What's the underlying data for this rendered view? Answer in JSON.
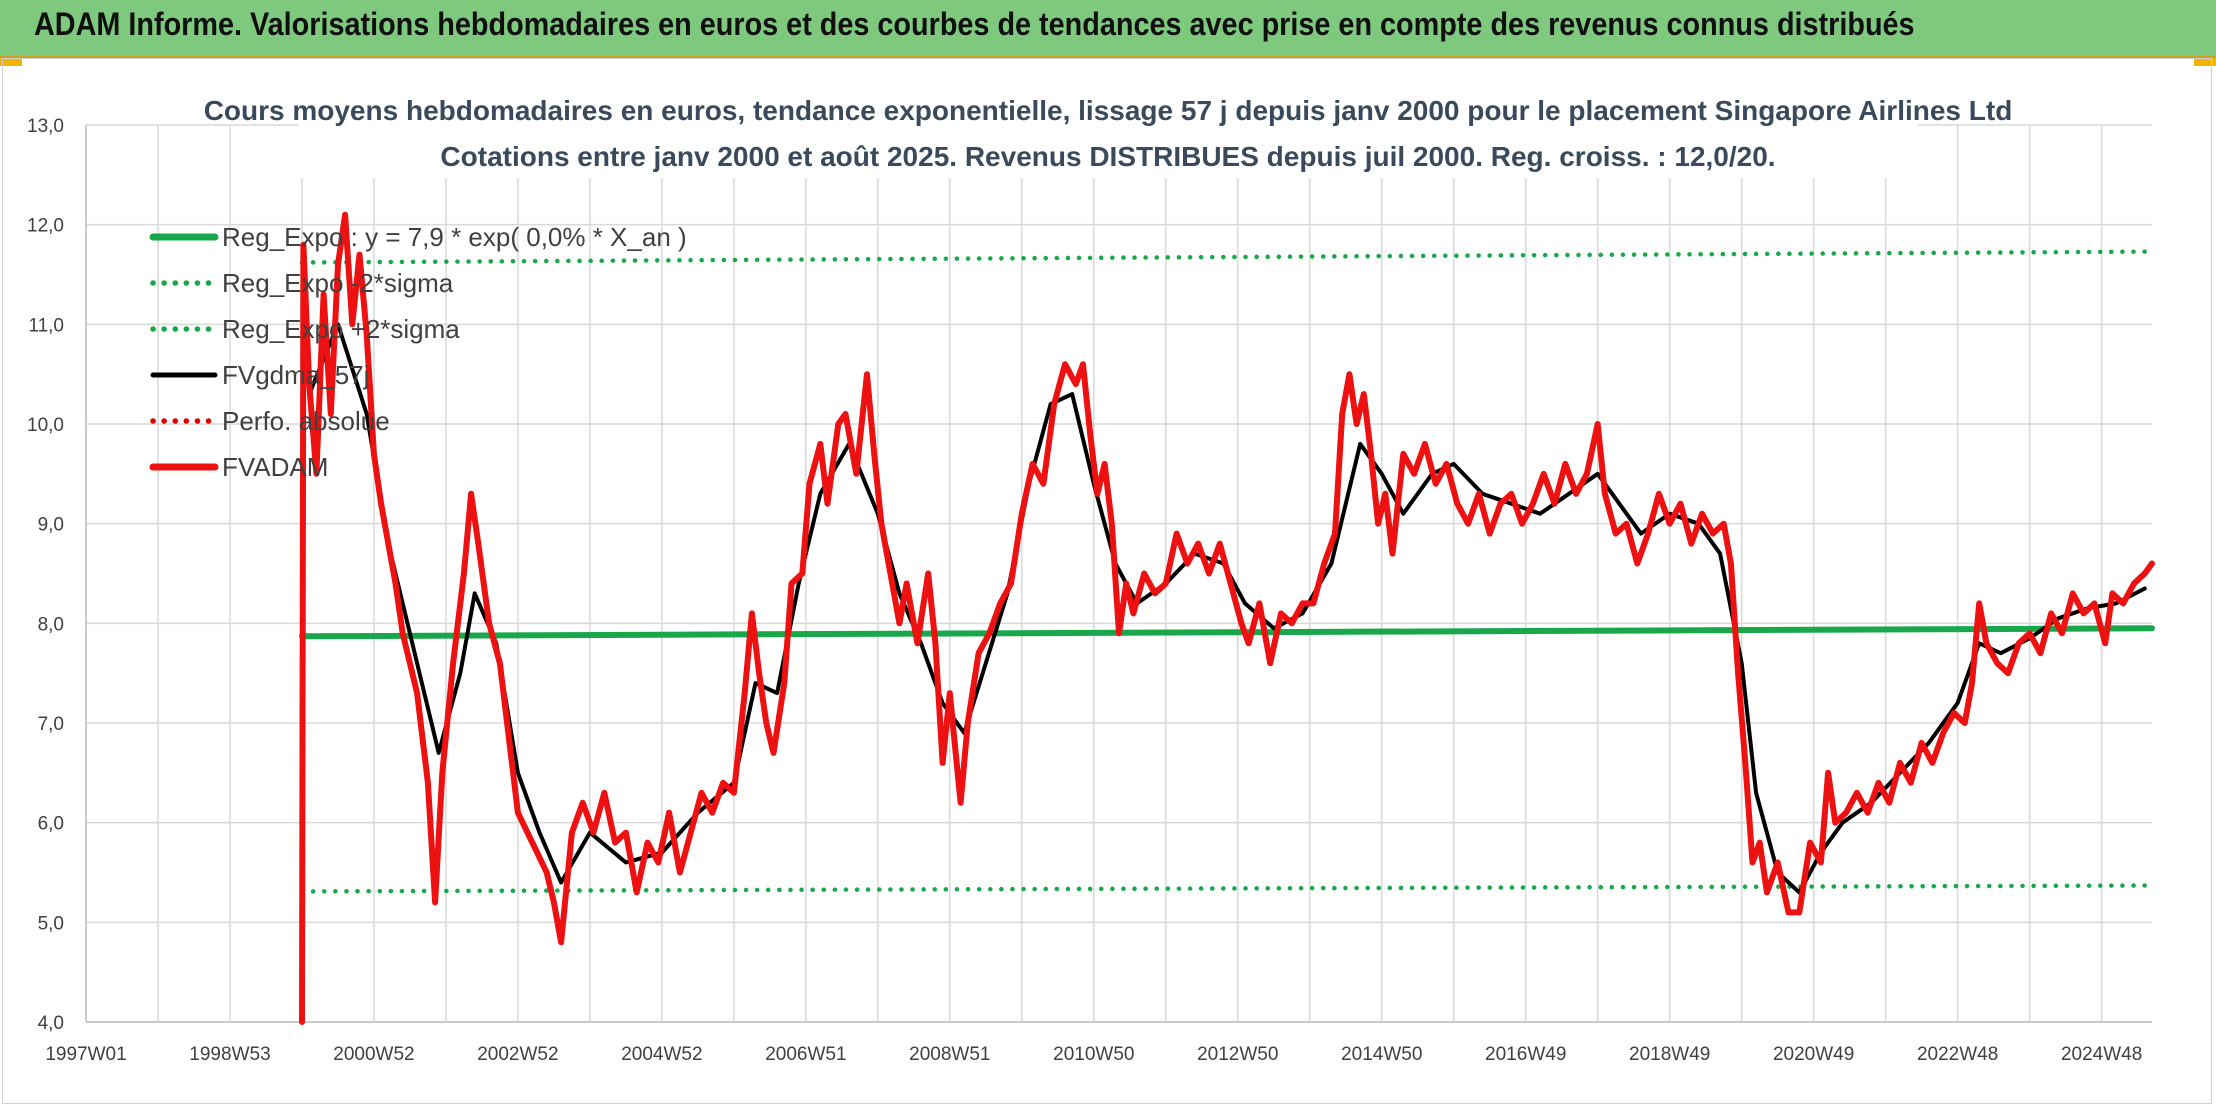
{
  "banner": {
    "title": "ADAM Informe. Valorisations hebdomadaires en euros et des courbes de tendances avec prise en compte des revenus connus distribués"
  },
  "colors": {
    "banner_bg": "#7fc97f",
    "reg": "#18a84b",
    "smooth": "#000000",
    "price": "#ee1111",
    "perfo": "#e00000",
    "grid": "#d9d9d9"
  },
  "chart_data": {
    "type": "line",
    "title": "Cours moyens hebdomadaires en euros, tendance exponentielle, lissage 57 j depuis janv 2000 pour le placement Singapore Airlines Ltd",
    "subtitle": "Cotations entre janv 2000 et août 2025. Revenus DISTRIBUES depuis juil 2000. Reg. croiss. : 12,0/20.",
    "xlabel": "",
    "ylabel": "",
    "ylim": [
      4.0,
      13.0
    ],
    "xlim": [
      1997.0,
      2025.7
    ],
    "x_ticks": [
      {
        "label": "1997W01",
        "x": 1997.0
      },
      {
        "label": "1998W53",
        "x": 1999.0
      },
      {
        "label": "2000W52",
        "x": 2001.0
      },
      {
        "label": "2002W52",
        "x": 2003.0
      },
      {
        "label": "2004W52",
        "x": 2005.0
      },
      {
        "label": "2006W51",
        "x": 2007.0
      },
      {
        "label": "2008W51",
        "x": 2009.0
      },
      {
        "label": "2010W50",
        "x": 2011.0
      },
      {
        "label": "2012W50",
        "x": 2013.0
      },
      {
        "label": "2014W50",
        "x": 2015.0
      },
      {
        "label": "2016W49",
        "x": 2017.0
      },
      {
        "label": "2018W49",
        "x": 2019.0
      },
      {
        "label": "2020W49",
        "x": 2021.0
      },
      {
        "label": "2022W48",
        "x": 2023.0
      },
      {
        "label": "2024W48",
        "x": 2025.0
      }
    ],
    "y_ticks": [
      "4,0",
      "5,0",
      "6,0",
      "7,0",
      "8,0",
      "9,0",
      "10,0",
      "11,0",
      "12,0",
      "13,0"
    ],
    "y_tick_values": [
      4,
      5,
      6,
      7,
      8,
      9,
      10,
      11,
      12,
      13
    ],
    "grid": true,
    "legend_position": "top-left",
    "series": [
      {
        "name": "Reg_Expo : y = 7,9 * exp( 0,0% *  X_an )",
        "style": "solid-thick",
        "color": "#18a84b",
        "points": [
          [
            2000.0,
            7.87
          ],
          [
            2025.7,
            7.95
          ]
        ]
      },
      {
        "name": "Reg_Expo -2*sigma",
        "style": "dotted",
        "color": "#18a84b",
        "points": [
          [
            2000.0,
            5.31
          ],
          [
            2025.7,
            5.37
          ]
        ]
      },
      {
        "name": "Reg_Expo +2*sigma",
        "style": "dotted",
        "color": "#18a84b",
        "points": [
          [
            2000.0,
            11.62
          ],
          [
            2025.7,
            11.73
          ]
        ]
      },
      {
        "name": "FVgdma_57j",
        "style": "solid",
        "color": "#000000",
        "points": [
          [
            2000.1,
            10.3
          ],
          [
            2000.5,
            11.0
          ],
          [
            2000.9,
            10.1
          ],
          [
            2001.2,
            8.8
          ],
          [
            2001.6,
            7.6
          ],
          [
            2001.9,
            6.7
          ],
          [
            2002.2,
            7.5
          ],
          [
            2002.4,
            8.3
          ],
          [
            2002.7,
            7.8
          ],
          [
            2003.0,
            6.5
          ],
          [
            2003.3,
            5.9
          ],
          [
            2003.6,
            5.4
          ],
          [
            2004.0,
            5.9
          ],
          [
            2004.5,
            5.6
          ],
          [
            2005.0,
            5.7
          ],
          [
            2005.5,
            6.1
          ],
          [
            2006.0,
            6.4
          ],
          [
            2006.3,
            7.4
          ],
          [
            2006.6,
            7.3
          ],
          [
            2006.9,
            8.4
          ],
          [
            2007.2,
            9.3
          ],
          [
            2007.6,
            9.8
          ],
          [
            2008.0,
            9.1
          ],
          [
            2008.3,
            8.3
          ],
          [
            2008.6,
            7.8
          ],
          [
            2008.9,
            7.2
          ],
          [
            2009.2,
            6.9
          ],
          [
            2009.5,
            7.6
          ],
          [
            2009.8,
            8.3
          ],
          [
            2010.1,
            9.4
          ],
          [
            2010.4,
            10.2
          ],
          [
            2010.7,
            10.3
          ],
          [
            2011.0,
            9.4
          ],
          [
            2011.3,
            8.6
          ],
          [
            2011.6,
            8.2
          ],
          [
            2012.0,
            8.4
          ],
          [
            2012.4,
            8.7
          ],
          [
            2012.8,
            8.6
          ],
          [
            2013.1,
            8.2
          ],
          [
            2013.5,
            7.95
          ],
          [
            2013.9,
            8.1
          ],
          [
            2014.3,
            8.6
          ],
          [
            2014.7,
            9.8
          ],
          [
            2015.0,
            9.5
          ],
          [
            2015.3,
            9.1
          ],
          [
            2015.7,
            9.5
          ],
          [
            2016.0,
            9.6
          ],
          [
            2016.4,
            9.3
          ],
          [
            2016.8,
            9.2
          ],
          [
            2017.2,
            9.1
          ],
          [
            2017.6,
            9.3
          ],
          [
            2018.0,
            9.5
          ],
          [
            2018.3,
            9.2
          ],
          [
            2018.6,
            8.9
          ],
          [
            2019.0,
            9.1
          ],
          [
            2019.4,
            9.0
          ],
          [
            2019.7,
            8.7
          ],
          [
            2020.0,
            7.6
          ],
          [
            2020.2,
            6.3
          ],
          [
            2020.5,
            5.5
          ],
          [
            2020.8,
            5.3
          ],
          [
            2021.1,
            5.7
          ],
          [
            2021.4,
            6.0
          ],
          [
            2021.8,
            6.2
          ],
          [
            2022.2,
            6.5
          ],
          [
            2022.6,
            6.8
          ],
          [
            2023.0,
            7.2
          ],
          [
            2023.3,
            7.8
          ],
          [
            2023.6,
            7.7
          ],
          [
            2024.0,
            7.85
          ],
          [
            2024.4,
            8.05
          ],
          [
            2024.8,
            8.15
          ],
          [
            2025.2,
            8.2
          ],
          [
            2025.6,
            8.35
          ]
        ]
      },
      {
        "name": "Perfo. absolue",
        "style": "dotted",
        "color": "#e00000",
        "points": []
      },
      {
        "name": "FVADAM",
        "style": "solid-thick",
        "color": "#ee1111",
        "points": [
          [
            2000.0,
            4.0
          ],
          [
            2000.02,
            11.8
          ],
          [
            2000.1,
            10.4
          ],
          [
            2000.2,
            9.5
          ],
          [
            2000.3,
            11.3
          ],
          [
            2000.4,
            10.1
          ],
          [
            2000.5,
            11.6
          ],
          [
            2000.6,
            12.1
          ],
          [
            2000.7,
            11.0
          ],
          [
            2000.8,
            11.7
          ],
          [
            2000.9,
            10.9
          ],
          [
            2001.0,
            9.7
          ],
          [
            2001.1,
            9.2
          ],
          [
            2001.2,
            8.8
          ],
          [
            2001.3,
            8.4
          ],
          [
            2001.4,
            7.9
          ],
          [
            2001.5,
            7.6
          ],
          [
            2001.6,
            7.3
          ],
          [
            2001.75,
            6.4
          ],
          [
            2001.85,
            5.2
          ],
          [
            2001.95,
            6.5
          ],
          [
            2002.1,
            7.6
          ],
          [
            2002.25,
            8.5
          ],
          [
            2002.35,
            9.3
          ],
          [
            2002.45,
            8.8
          ],
          [
            2002.6,
            8.0
          ],
          [
            2002.75,
            7.6
          ],
          [
            2002.9,
            6.7
          ],
          [
            2003.0,
            6.1
          ],
          [
            2003.2,
            5.8
          ],
          [
            2003.4,
            5.5
          ],
          [
            2003.5,
            5.2
          ],
          [
            2003.6,
            4.8
          ],
          [
            2003.75,
            5.9
          ],
          [
            2003.9,
            6.2
          ],
          [
            2004.05,
            5.9
          ],
          [
            2004.2,
            6.3
          ],
          [
            2004.35,
            5.8
          ],
          [
            2004.5,
            5.9
          ],
          [
            2004.65,
            5.3
          ],
          [
            2004.8,
            5.8
          ],
          [
            2004.95,
            5.6
          ],
          [
            2005.1,
            6.1
          ],
          [
            2005.25,
            5.5
          ],
          [
            2005.4,
            5.9
          ],
          [
            2005.55,
            6.3
          ],
          [
            2005.7,
            6.1
          ],
          [
            2005.85,
            6.4
          ],
          [
            2006.0,
            6.3
          ],
          [
            2006.15,
            7.3
          ],
          [
            2006.25,
            8.1
          ],
          [
            2006.35,
            7.5
          ],
          [
            2006.45,
            7.0
          ],
          [
            2006.55,
            6.7
          ],
          [
            2006.7,
            7.4
          ],
          [
            2006.8,
            8.4
          ],
          [
            2006.95,
            8.5
          ],
          [
            2007.05,
            9.4
          ],
          [
            2007.2,
            9.8
          ],
          [
            2007.3,
            9.2
          ],
          [
            2007.45,
            10.0
          ],
          [
            2007.55,
            10.1
          ],
          [
            2007.7,
            9.5
          ],
          [
            2007.85,
            10.5
          ],
          [
            2007.95,
            9.7
          ],
          [
            2008.05,
            9.0
          ],
          [
            2008.15,
            8.6
          ],
          [
            2008.3,
            8.0
          ],
          [
            2008.4,
            8.4
          ],
          [
            2008.55,
            7.8
          ],
          [
            2008.7,
            8.5
          ],
          [
            2008.8,
            7.8
          ],
          [
            2008.9,
            6.6
          ],
          [
            2009.0,
            7.3
          ],
          [
            2009.15,
            6.2
          ],
          [
            2009.25,
            7.0
          ],
          [
            2009.4,
            7.7
          ],
          [
            2009.55,
            7.9
          ],
          [
            2009.7,
            8.2
          ],
          [
            2009.85,
            8.4
          ],
          [
            2010.0,
            9.1
          ],
          [
            2010.15,
            9.6
          ],
          [
            2010.3,
            9.4
          ],
          [
            2010.45,
            10.2
          ],
          [
            2010.6,
            10.6
          ],
          [
            2010.75,
            10.4
          ],
          [
            2010.85,
            10.6
          ],
          [
            2010.95,
            9.9
          ],
          [
            2011.05,
            9.3
          ],
          [
            2011.15,
            9.6
          ],
          [
            2011.25,
            9.0
          ],
          [
            2011.35,
            7.9
          ],
          [
            2011.45,
            8.4
          ],
          [
            2011.55,
            8.1
          ],
          [
            2011.7,
            8.5
          ],
          [
            2011.85,
            8.3
          ],
          [
            2012.0,
            8.4
          ],
          [
            2012.15,
            8.9
          ],
          [
            2012.3,
            8.6
          ],
          [
            2012.45,
            8.8
          ],
          [
            2012.6,
            8.5
          ],
          [
            2012.75,
            8.8
          ],
          [
            2012.9,
            8.4
          ],
          [
            2013.05,
            8.0
          ],
          [
            2013.15,
            7.8
          ],
          [
            2013.3,
            8.2
          ],
          [
            2013.45,
            7.6
          ],
          [
            2013.6,
            8.1
          ],
          [
            2013.75,
            8.0
          ],
          [
            2013.9,
            8.2
          ],
          [
            2014.05,
            8.2
          ],
          [
            2014.2,
            8.6
          ],
          [
            2014.35,
            8.9
          ],
          [
            2014.45,
            10.1
          ],
          [
            2014.55,
            10.5
          ],
          [
            2014.65,
            10.0
          ],
          [
            2014.75,
            10.3
          ],
          [
            2014.85,
            9.7
          ],
          [
            2014.95,
            9.0
          ],
          [
            2015.05,
            9.3
          ],
          [
            2015.15,
            8.7
          ],
          [
            2015.3,
            9.7
          ],
          [
            2015.45,
            9.5
          ],
          [
            2015.6,
            9.8
          ],
          [
            2015.75,
            9.4
          ],
          [
            2015.9,
            9.6
          ],
          [
            2016.05,
            9.2
          ],
          [
            2016.2,
            9.0
          ],
          [
            2016.35,
            9.3
          ],
          [
            2016.5,
            8.9
          ],
          [
            2016.65,
            9.2
          ],
          [
            2016.8,
            9.3
          ],
          [
            2016.95,
            9.0
          ],
          [
            2017.1,
            9.2
          ],
          [
            2017.25,
            9.5
          ],
          [
            2017.4,
            9.2
          ],
          [
            2017.55,
            9.6
          ],
          [
            2017.7,
            9.3
          ],
          [
            2017.85,
            9.5
          ],
          [
            2018.0,
            10.0
          ],
          [
            2018.1,
            9.3
          ],
          [
            2018.25,
            8.9
          ],
          [
            2018.4,
            9.0
          ],
          [
            2018.55,
            8.6
          ],
          [
            2018.7,
            8.9
          ],
          [
            2018.85,
            9.3
          ],
          [
            2019.0,
            9.0
          ],
          [
            2019.15,
            9.2
          ],
          [
            2019.3,
            8.8
          ],
          [
            2019.45,
            9.1
          ],
          [
            2019.6,
            8.9
          ],
          [
            2019.75,
            9.0
          ],
          [
            2019.85,
            8.6
          ],
          [
            2019.95,
            7.5
          ],
          [
            2020.05,
            6.6
          ],
          [
            2020.15,
            5.6
          ],
          [
            2020.25,
            5.8
          ],
          [
            2020.35,
            5.3
          ],
          [
            2020.5,
            5.6
          ],
          [
            2020.65,
            5.1
          ],
          [
            2020.8,
            5.1
          ],
          [
            2020.95,
            5.8
          ],
          [
            2021.1,
            5.6
          ],
          [
            2021.2,
            6.5
          ],
          [
            2021.3,
            6.0
          ],
          [
            2021.45,
            6.1
          ],
          [
            2021.6,
            6.3
          ],
          [
            2021.75,
            6.1
          ],
          [
            2021.9,
            6.4
          ],
          [
            2022.05,
            6.2
          ],
          [
            2022.2,
            6.6
          ],
          [
            2022.35,
            6.4
          ],
          [
            2022.5,
            6.8
          ],
          [
            2022.65,
            6.6
          ],
          [
            2022.8,
            6.9
          ],
          [
            2022.95,
            7.1
          ],
          [
            2023.1,
            7.0
          ],
          [
            2023.2,
            7.4
          ],
          [
            2023.3,
            8.2
          ],
          [
            2023.4,
            7.8
          ],
          [
            2023.55,
            7.6
          ],
          [
            2023.7,
            7.5
          ],
          [
            2023.85,
            7.8
          ],
          [
            2024.0,
            7.9
          ],
          [
            2024.15,
            7.7
          ],
          [
            2024.3,
            8.1
          ],
          [
            2024.45,
            7.9
          ],
          [
            2024.6,
            8.3
          ],
          [
            2024.75,
            8.1
          ],
          [
            2024.9,
            8.2
          ],
          [
            2025.05,
            7.8
          ],
          [
            2025.15,
            8.3
          ],
          [
            2025.3,
            8.2
          ],
          [
            2025.45,
            8.4
          ],
          [
            2025.6,
            8.5
          ],
          [
            2025.7,
            8.6
          ]
        ]
      }
    ]
  }
}
